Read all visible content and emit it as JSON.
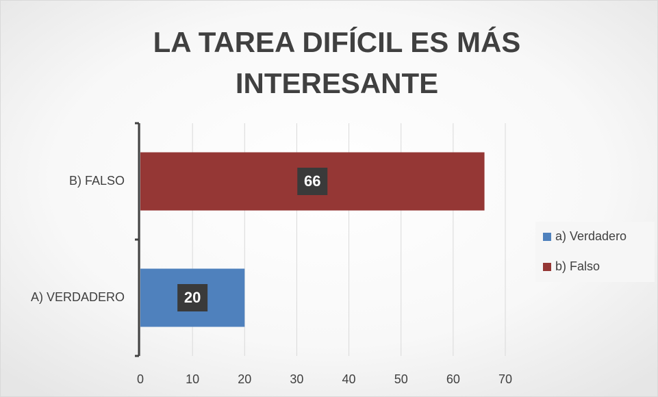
{
  "chart_data": {
    "type": "bar",
    "orientation": "horizontal",
    "title": "LA TAREA DIFÍCIL ES MÁS INTERESANTE",
    "categories": [
      "A) VERDADERO",
      "B) FALSO"
    ],
    "series": [
      {
        "name": "a) Verdadero",
        "color": "#4f81bd",
        "values": [
          20,
          null
        ]
      },
      {
        "name": "b) Falso",
        "color": "#953735",
        "values": [
          null,
          66
        ]
      }
    ],
    "xlim": [
      0,
      70
    ],
    "xticks": [
      0,
      10,
      20,
      30,
      40,
      50,
      60,
      70
    ],
    "grid": true,
    "legend": "right"
  }
}
